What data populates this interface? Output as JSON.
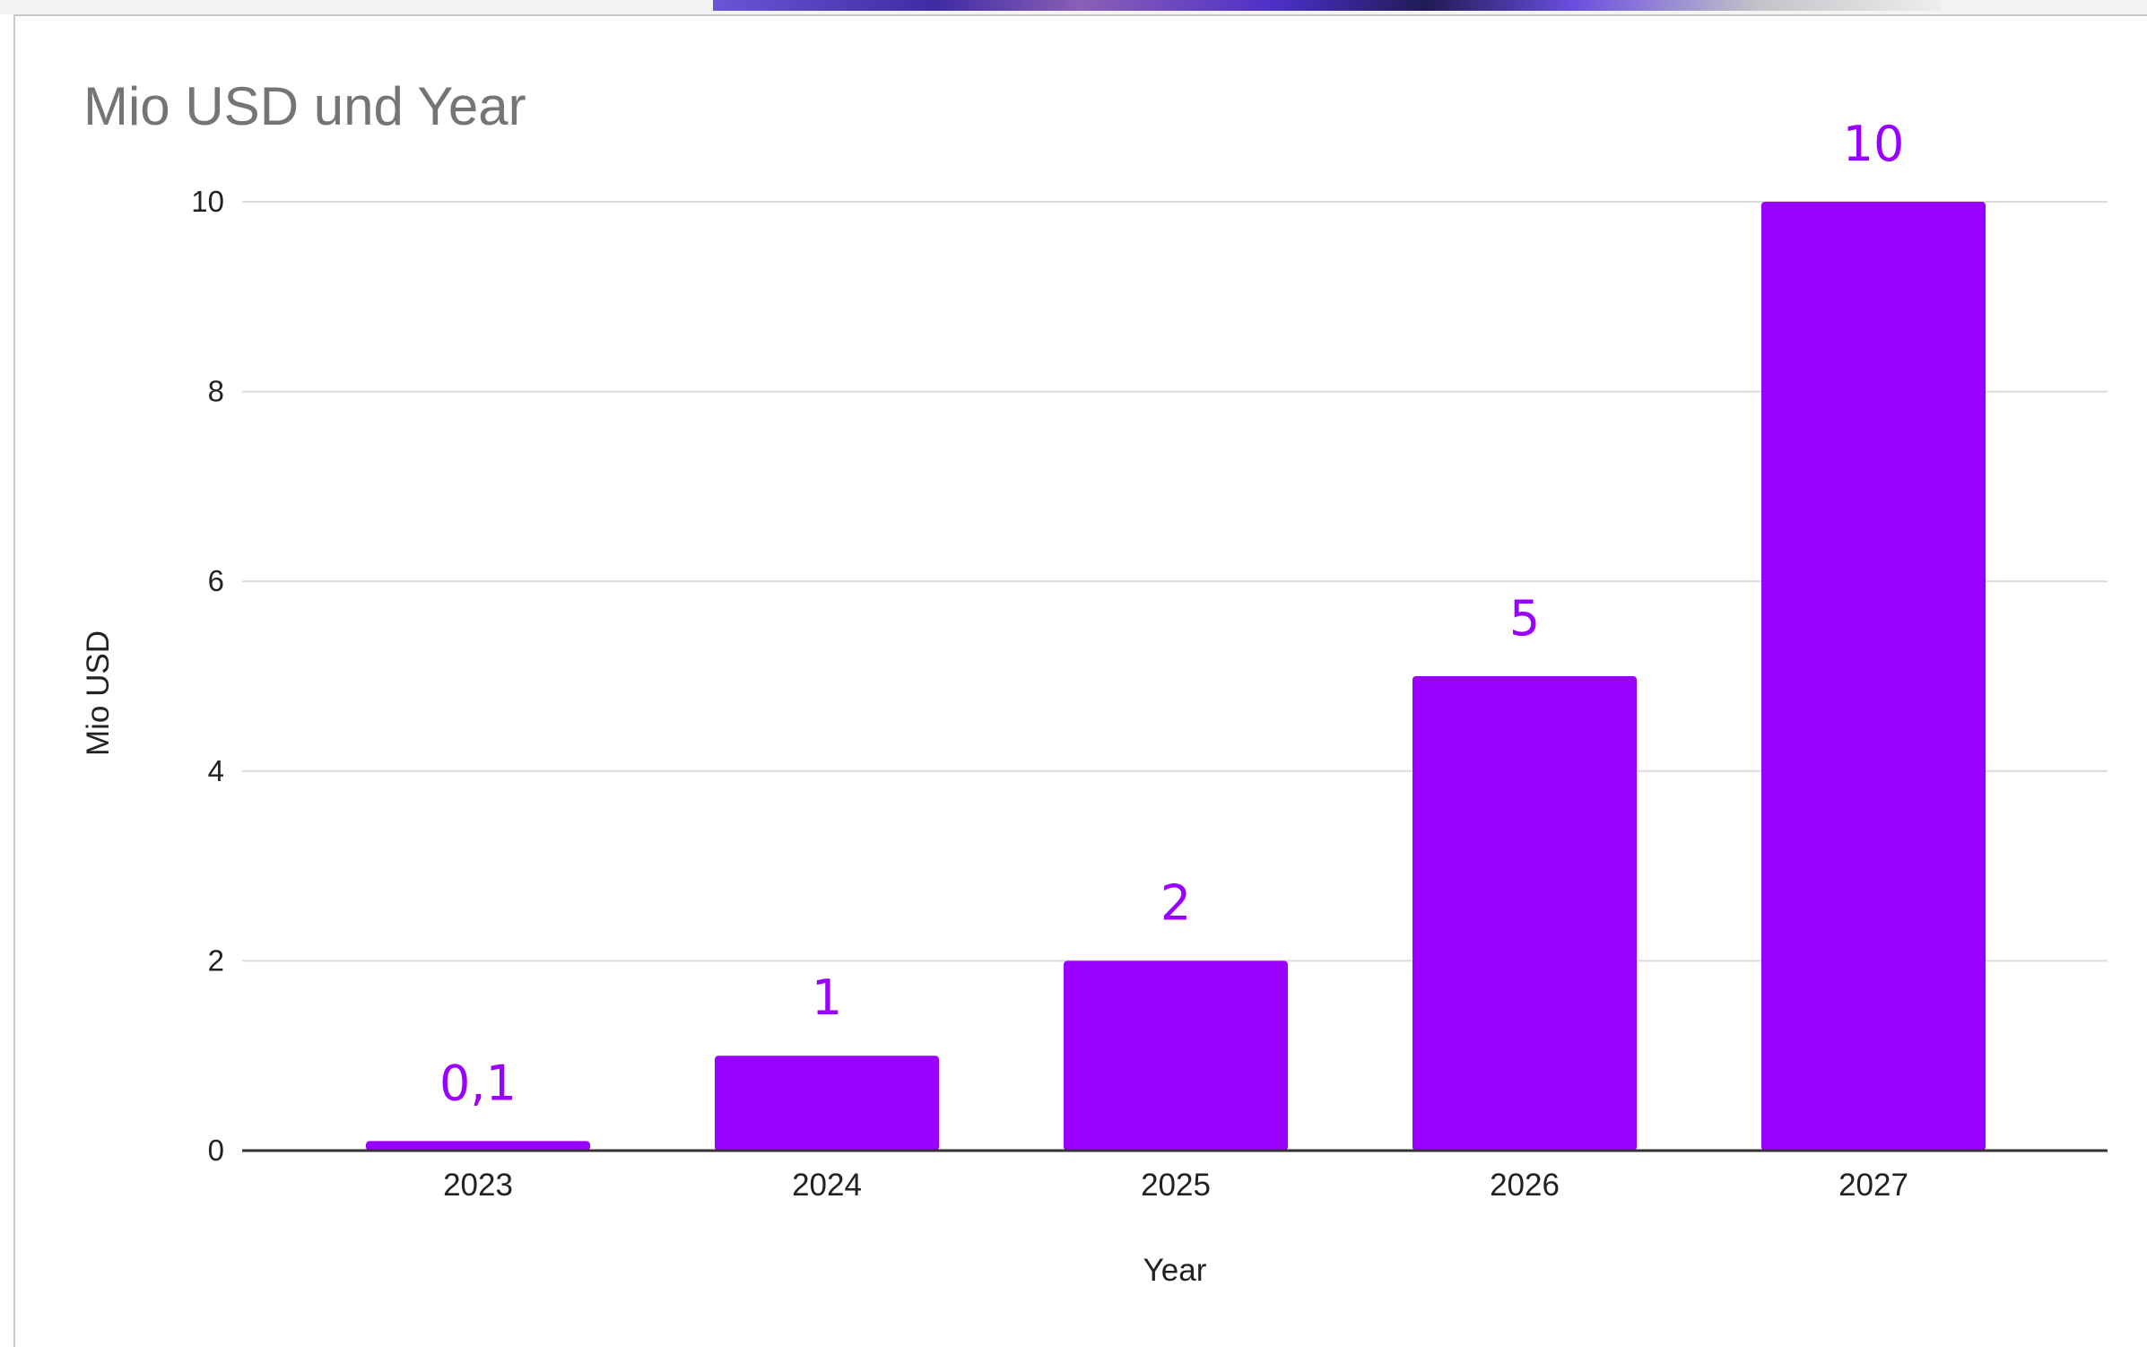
{
  "chart_data": {
    "type": "bar",
    "title": "Mio USD und Year",
    "xlabel": "Year",
    "ylabel": "Mio USD",
    "categories": [
      "2023",
      "2024",
      "2025",
      "2026",
      "2027"
    ],
    "values": [
      0.1,
      1,
      2,
      5,
      10
    ],
    "data_labels": [
      "0,1",
      "1",
      "2",
      "5",
      "10"
    ],
    "y_ticks": [
      0,
      2,
      4,
      6,
      8,
      10
    ],
    "ylim": [
      0,
      10
    ],
    "grid": true,
    "legend": "none",
    "colors": {
      "bar": "#9900ff",
      "data_label": "#9900ff",
      "title": "#757575",
      "grid": "#dcdcdc",
      "axis": "#333333",
      "text": "#222222"
    }
  }
}
